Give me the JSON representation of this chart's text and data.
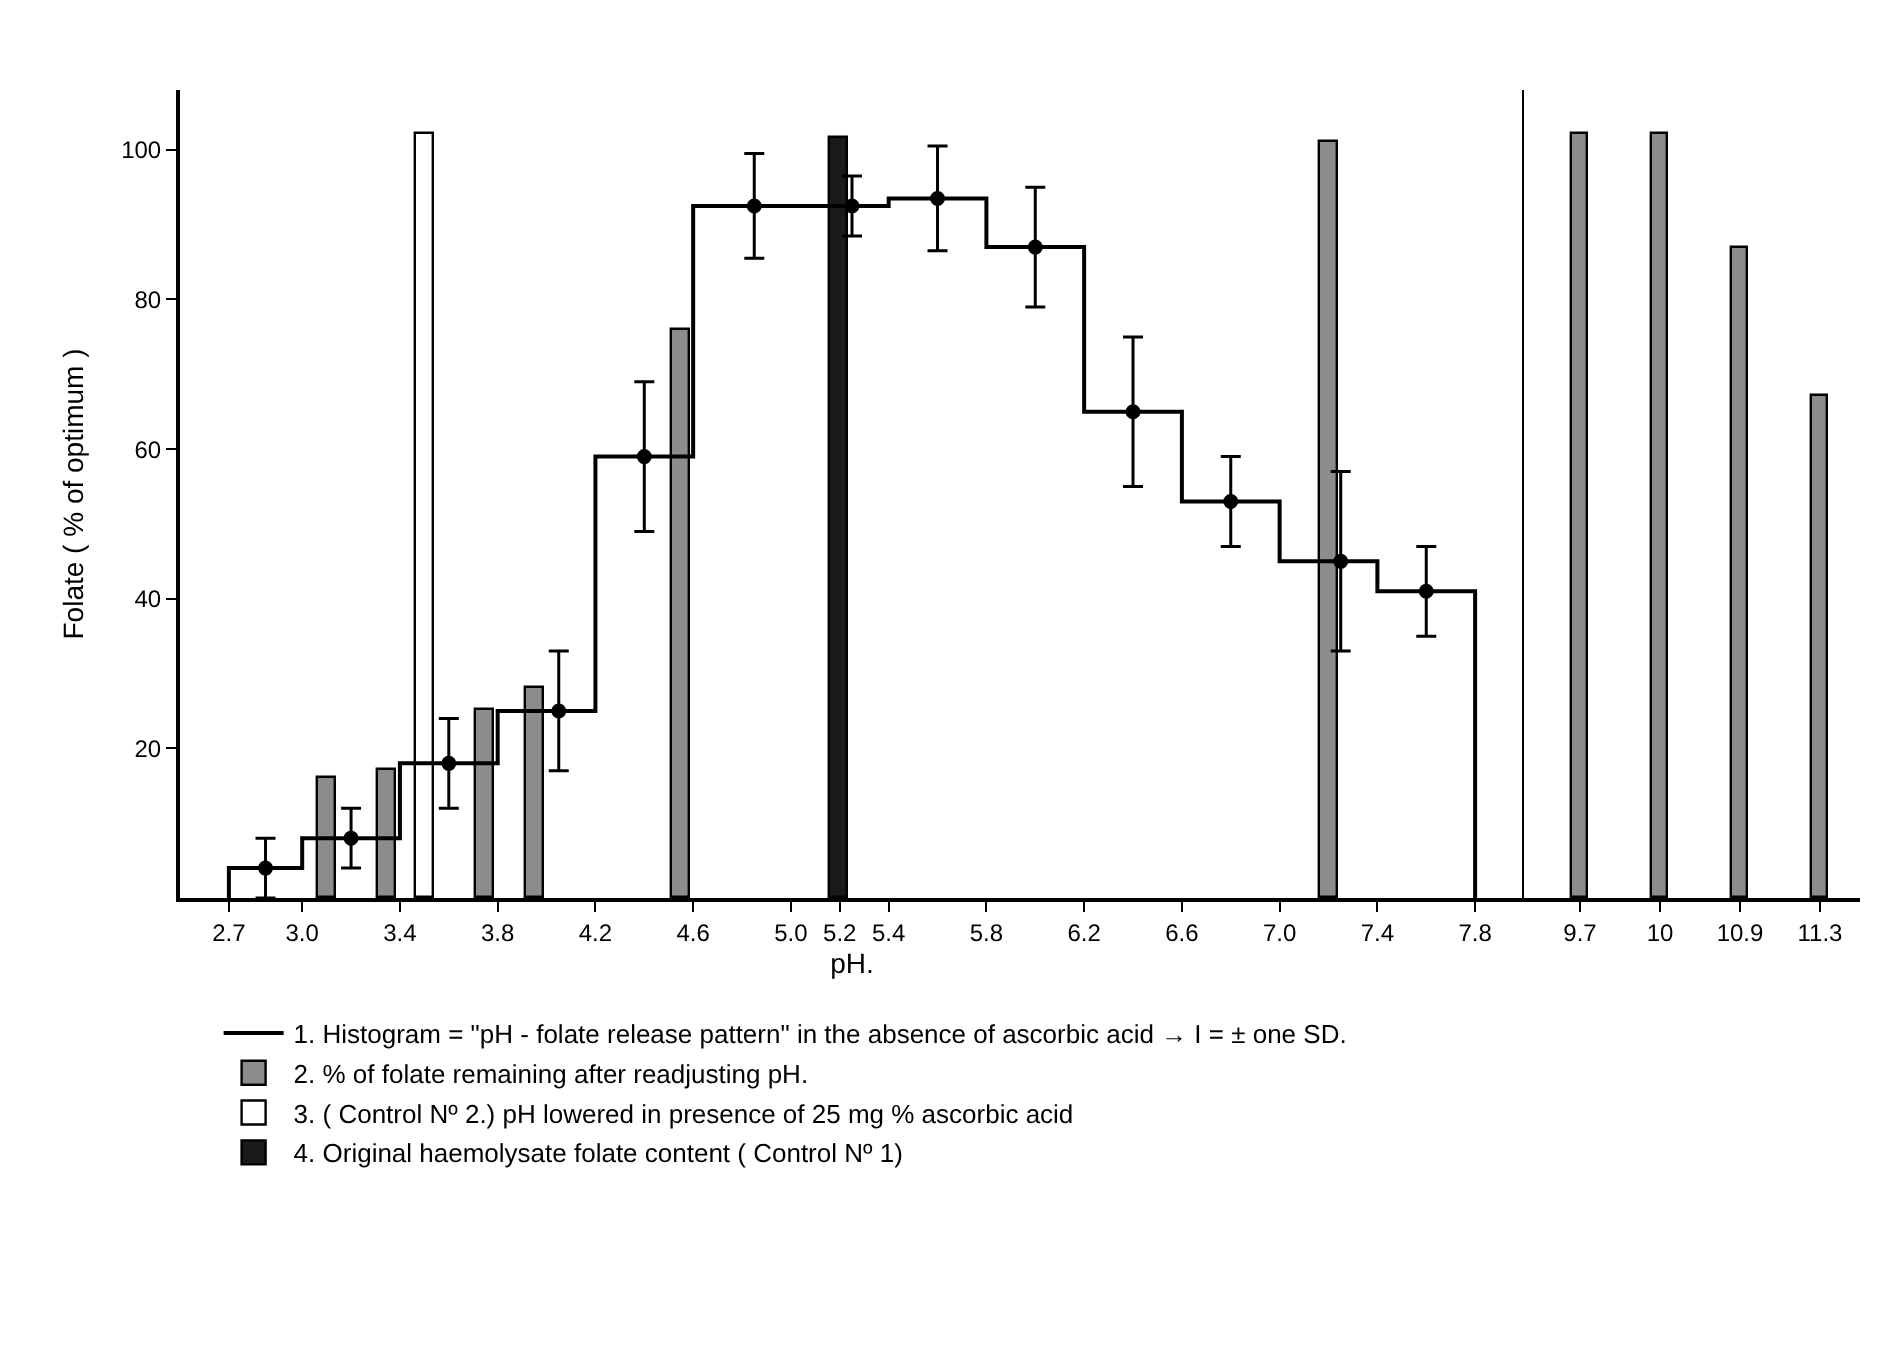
{
  "chart_data": [
    {
      "type": "bar",
      "xlabel": "pH.",
      "ylabel": "Folate ( % of optimum )",
      "legend": "bottom",
      "xlim": [
        2.5,
        8.0
      ],
      "xticks": [
        2.7,
        {
          "value": 3,
          "label": "3.0"
        },
        3.4,
        3.8,
        4.2,
        4.6,
        {
          "value": 5,
          "label": "5.0"
        },
        5.2,
        5.4,
        5.8,
        6.2,
        6.6,
        {
          "value": 7,
          "label": "7.0"
        },
        7.4,
        7.8
      ],
      "ylim": [
        0,
        108
      ],
      "yticks": [
        20,
        40,
        60,
        80,
        100
      ],
      "series": [
        {
          "type": "histogram",
          "name": "1. Histogram = \"pH - folate release pattern\" in the absence of ascorbic acid → I = ± one SD.",
          "color": "#000000",
          "bins": [
            2.7,
            3.0,
            3.4,
            3.8,
            4.2,
            4.6,
            5.0,
            5.4,
            5.8,
            6.2,
            6.6,
            7.0,
            7.4,
            7.8
          ],
          "values": [
            4,
            8,
            18,
            25,
            59,
            92.5,
            92.5,
            93.5,
            87,
            65,
            53,
            45,
            41
          ]
        },
        {
          "type": "scatter",
          "marker": "circle",
          "color": "#000000",
          "x": [
            2.85,
            3.2,
            3.6,
            4.05,
            4.4,
            4.85,
            5.25,
            5.6,
            6.0,
            6.4,
            6.8,
            7.25,
            7.6
          ],
          "values": [
            4,
            8,
            18,
            25,
            59,
            92.5,
            92.5,
            93.5,
            87,
            65,
            53,
            45,
            41
          ],
          "errors": [
            4,
            4,
            6,
            8,
            10,
            7,
            4,
            7,
            8,
            10,
            6,
            12,
            6
          ]
        },
        {
          "name": "2. % of folate remaining after readjusting pH.",
          "color": "#8c8c8c",
          "x": [
            3.1,
            3.35,
            3.75,
            3.95,
            4.55,
            7.2
          ],
          "values": [
            16,
            17,
            25,
            28,
            76,
            101
          ]
        },
        {
          "name": "3. ( Control Nº 2.) pH lowered in presence of 25 mg % ascorbic acid",
          "color": "#ffffff",
          "x": [
            3.5
          ],
          "values": [
            102
          ]
        },
        {
          "name": "4. Original haemolysate folate content ( Control Nº 1)",
          "color": "#1a1a1a",
          "x": [
            5.2
          ],
          "values": [
            101.5
          ]
        }
      ]
    },
    {
      "type": "bar",
      "categories": [
        "9.7",
        "10",
        "10.9",
        "11.3"
      ],
      "ylim": [
        0,
        108
      ],
      "yticks": [
        20,
        40,
        60,
        80,
        100
      ],
      "tick_labels": "x",
      "series": [
        {
          "color": "#8c8c8c",
          "values": [
            102,
            102,
            87,
            67
          ]
        }
      ]
    }
  ]
}
